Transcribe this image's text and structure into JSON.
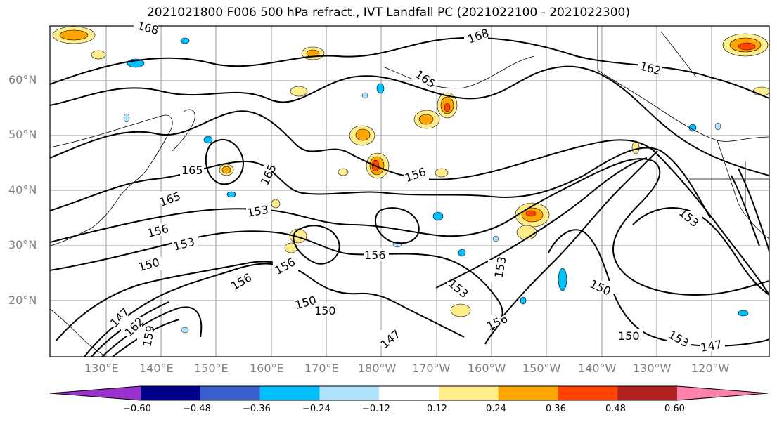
{
  "title": "2021021800 F006 500 hPa refract., IVT Landfall PC (2021022100 - 2021022300)",
  "lat_labels": [
    "60°N",
    "50°N",
    "40°N",
    "30°N",
    "20°N"
  ],
  "lon_labels": [
    "130°E",
    "140°E",
    "150°E",
    "160°E",
    "170°E",
    "180°W",
    "170°W",
    "160°W",
    "150°W",
    "140°W",
    "130°W",
    "120°W"
  ],
  "contour_labels": [
    "168",
    "168",
    "165",
    "162",
    "165",
    "165",
    "165",
    "156",
    "153",
    "156",
    "153",
    "150",
    "156",
    "156",
    "156",
    "153",
    "153",
    "150",
    "150",
    "150",
    "147",
    "156",
    "150",
    "147",
    "153",
    "147",
    "162",
    "159",
    "153"
  ],
  "colorbar": {
    "ticks": [
      "−0.60",
      "−0.48",
      "−0.36",
      "−0.24",
      "−0.12",
      "0.12",
      "0.24",
      "0.36",
      "0.48",
      "0.60"
    ],
    "colors": [
      "#9932cc",
      "#00008b",
      "#3a5fcd",
      "#00bfff",
      "#b0e2ff",
      "#ffffff",
      "#ffec8b",
      "#ffa500",
      "#ff4500",
      "#b22222",
      "#ff82ab"
    ]
  }
}
